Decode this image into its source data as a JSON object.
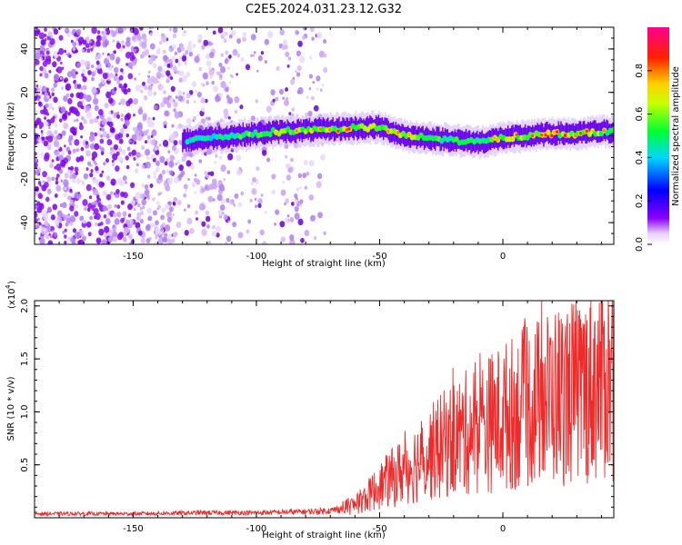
{
  "title": "C2E5.2024.031.23.12.G32",
  "colors": {
    "snr_line": "#ee2a2a",
    "spectrogram_min": "#ffffff",
    "spectrogram_low": "#7a00e6"
  },
  "colorbar": {
    "label": "Normalized spectral amplitude",
    "ticks": [
      "0.0",
      "0.2",
      "0.4",
      "0.6",
      "0.8"
    ],
    "tick_values": [
      0.0,
      0.2,
      0.4,
      0.6,
      0.8
    ],
    "range": [
      0,
      1
    ],
    "colormap": "rainbow (white → violet → blue → cyan → green → yellow → red → magenta)"
  },
  "chart_data": [
    {
      "type": "heatmap",
      "xlabel": "Height of straight line (km)",
      "ylabel": "Frequency (Hz)",
      "xlim": [
        -190,
        45
      ],
      "ylim": [
        -50,
        50
      ],
      "xticks": [
        -150,
        -100,
        -50,
        0
      ],
      "xtick_labels": [
        "-150",
        "-100",
        "-50",
        "0"
      ],
      "yticks": [
        -40,
        -20,
        0,
        20,
        40
      ],
      "ytick_labels": [
        "-40",
        "-20",
        "0",
        "20",
        "40"
      ],
      "ridge": {
        "description_points_x": [
          -128,
          -110,
          -90,
          -70,
          -50,
          -40,
          -30,
          -20,
          -10,
          0,
          10,
          20,
          30,
          40
        ],
        "frequency_hz": [
          -2,
          0,
          2,
          3,
          4,
          0,
          -1,
          -2,
          -3,
          -1,
          0,
          1,
          1,
          2
        ],
        "peak_normalized_amplitude": [
          0.35,
          0.5,
          0.7,
          0.85,
          0.75,
          0.75,
          0.6,
          0.5,
          0.55,
          0.8,
          0.85,
          0.9,
          0.9,
          0.75
        ]
      },
      "noise_region_km": [
        -190,
        -72
      ]
    },
    {
      "type": "line",
      "xlabel": "Height of straight line (km)",
      "ylabel": "SNR (10 * v/v)",
      "yscale_label": "(x10",
      "yscale_exponent": "4",
      "xlim": [
        -190,
        45
      ],
      "ylim": [
        0,
        2.05
      ],
      "xticks": [
        -150,
        -100,
        -50,
        0
      ],
      "xtick_labels": [
        "-150",
        "-100",
        "-50",
        "0"
      ],
      "yticks": [
        0.5,
        1.0,
        1.5,
        2.0
      ],
      "ytick_labels": [
        "0.5",
        "1.0",
        "1.5",
        "2.0"
      ],
      "series": [
        {
          "x": [
            -190,
            -150,
            -120,
            -100,
            -80,
            -70,
            -60,
            -55,
            -50,
            -40,
            -30,
            -20,
            -10,
            0,
            10,
            20,
            30,
            40,
            45
          ],
          "y": [
            0.04,
            0.04,
            0.05,
            0.05,
            0.06,
            0.07,
            0.12,
            0.2,
            0.3,
            0.45,
            0.6,
            0.75,
            0.85,
            0.95,
            1.05,
            1.15,
            1.2,
            1.3,
            1.35
          ]
        }
      ]
    }
  ]
}
